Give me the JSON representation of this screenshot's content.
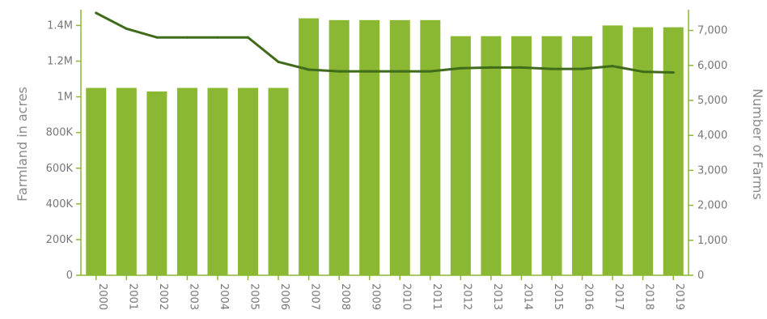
{
  "chart_data": {
    "type": "bar",
    "categories": [
      "2000",
      "2001",
      "2002",
      "2003",
      "2004",
      "2005",
      "2006",
      "2007",
      "2008",
      "2009",
      "2010",
      "2011",
      "2012",
      "2013",
      "2014",
      "2015",
      "2016",
      "2017",
      "2018",
      "2019"
    ],
    "series": [
      {
        "type": "bar",
        "axis": "left",
        "values": [
          1050000,
          1050000,
          1030000,
          1050000,
          1050000,
          1050000,
          1050000,
          1440000,
          1430000,
          1430000,
          1430000,
          1430000,
          1340000,
          1340000,
          1340000,
          1340000,
          1340000,
          1400000,
          1390000,
          1390000
        ]
      },
      {
        "type": "line",
        "axis": "right",
        "values": [
          7500,
          7050,
          6800,
          6800,
          6800,
          6800,
          6100,
          5880,
          5830,
          5830,
          5830,
          5830,
          5920,
          5940,
          5940,
          5900,
          5900,
          5980,
          5820,
          5800
        ]
      }
    ],
    "xlabel": "",
    "ylabel": "Farmland in acres",
    "y2label": "Number of Farms",
    "ylim": [
      0,
      1470000
    ],
    "y2lim": [
      0,
      7500
    ],
    "yticks": [
      {
        "v": 0,
        "label": "0"
      },
      {
        "v": 200000,
        "label": "200K"
      },
      {
        "v": 400000,
        "label": "400K"
      },
      {
        "v": 600000,
        "label": "600K"
      },
      {
        "v": 800000,
        "label": "800K"
      },
      {
        "v": 1000000,
        "label": "1M"
      },
      {
        "v": 1200000,
        "label": "1.2M"
      },
      {
        "v": 1400000,
        "label": "1.4M"
      }
    ],
    "y2ticks": [
      {
        "v": 0,
        "label": "0"
      },
      {
        "v": 1000,
        "label": "1,000"
      },
      {
        "v": 2000,
        "label": "2,000"
      },
      {
        "v": 3000,
        "label": "3,000"
      },
      {
        "v": 4000,
        "label": "4,000"
      },
      {
        "v": 5000,
        "label": "5,000"
      },
      {
        "v": 6000,
        "label": "6,000"
      },
      {
        "v": 7000,
        "label": "7,000"
      }
    ],
    "grid": false,
    "colors": {
      "bar": "#8ab833",
      "line": "#3f6b1a",
      "axis": "#8ab833",
      "text": "#777777"
    }
  }
}
